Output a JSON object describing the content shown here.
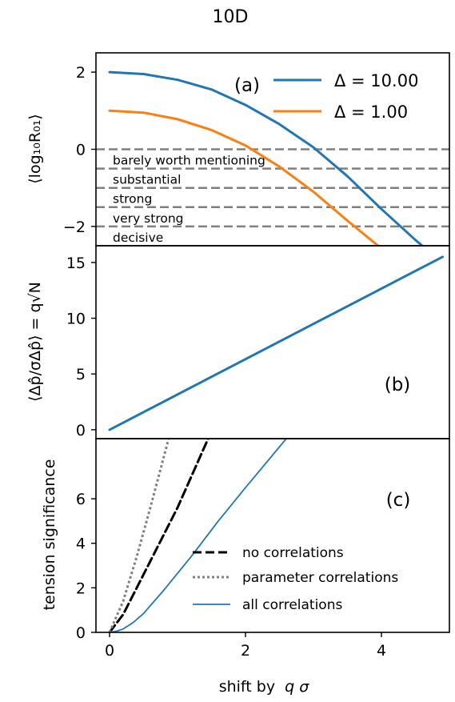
{
  "figure": {
    "title": "10D",
    "xlabel_prefix": "shift by",
    "xlabel_math": "q σ"
  },
  "chart_data": [
    {
      "id": "a",
      "type": "line",
      "panel_label": "(a)",
      "ylabel": "⟨log₁₀R₀₁⟩",
      "xlim": [
        -0.2,
        5.0
      ],
      "ylim": [
        -2.5,
        2.5
      ],
      "yticks": [
        -2,
        0,
        2
      ],
      "ytick_labels": [
        "−2",
        "0",
        "2"
      ],
      "legend_position": "top-right",
      "series": [
        {
          "name": "Δ = 10.00",
          "color": "#1f77b4",
          "x": [
            0,
            0.5,
            1.0,
            1.5,
            2.0,
            2.5,
            3.0,
            3.5,
            4.0,
            4.5,
            4.6
          ],
          "y": [
            2.0,
            1.95,
            1.8,
            1.55,
            1.15,
            0.65,
            0.05,
            -0.7,
            -1.55,
            -2.35,
            -2.5
          ]
        },
        {
          "name": "Δ = 1.00",
          "color": "#ff7f0e",
          "x": [
            0,
            0.5,
            1.0,
            1.5,
            2.0,
            2.5,
            3.0,
            3.5,
            3.95
          ],
          "y": [
            1.0,
            0.95,
            0.78,
            0.5,
            0.1,
            -0.45,
            -1.1,
            -1.85,
            -2.5
          ]
        }
      ],
      "reference_lines": [
        {
          "y": 0,
          "label": "barely worth mentioning"
        },
        {
          "y": -0.5,
          "label": "substantial"
        },
        {
          "y": -1.0,
          "label": "strong"
        },
        {
          "y": -1.5,
          "label": "very strong"
        },
        {
          "y": -2.0,
          "label": "decisive"
        }
      ]
    },
    {
      "id": "b",
      "type": "line",
      "panel_label": "(b)",
      "ylabel": "⟨Δp̂/σΔp̂⟩ = q√N",
      "xlim": [
        -0.2,
        5.0
      ],
      "ylim": [
        -0.8,
        16.5
      ],
      "yticks": [
        0,
        5,
        10,
        15
      ],
      "ytick_labels": [
        "0",
        "5",
        "10",
        "15"
      ],
      "series": [
        {
          "name": "",
          "color": "#1f77b4",
          "x": [
            0,
            4.9
          ],
          "y": [
            0,
            15.5
          ]
        }
      ]
    },
    {
      "id": "c",
      "type": "line",
      "panel_label": "(c)",
      "ylabel": "tension significance",
      "xlim": [
        -0.2,
        5.0
      ],
      "ylim": [
        0,
        8.7
      ],
      "yticks": [
        0,
        2,
        4,
        6
      ],
      "ytick_labels": [
        "0",
        "2",
        "4",
        "6"
      ],
      "xticks": [
        0,
        2,
        4
      ],
      "xtick_labels": [
        "0",
        "2",
        "4"
      ],
      "legend_position": "lower-right",
      "series": [
        {
          "name": "no correlations",
          "color": "#000000",
          "style": "dashed",
          "x": [
            0,
            0.2,
            0.5,
            1.0,
            1.45
          ],
          "y": [
            0,
            0.8,
            2.6,
            5.6,
            8.7
          ]
        },
        {
          "name": "parameter correlations",
          "color": "#7f7f7f",
          "style": "dotted",
          "x": [
            0,
            0.2,
            0.4,
            0.6,
            0.87
          ],
          "y": [
            0,
            1.4,
            3.4,
            5.6,
            8.7
          ]
        },
        {
          "name": "all correlations",
          "color": "#1f77b4",
          "style": "solid",
          "x": [
            0,
            0.1,
            0.2,
            0.35,
            0.5,
            0.8,
            1.2,
            1.6,
            2.0,
            2.6
          ],
          "y": [
            0,
            0.05,
            0.15,
            0.45,
            0.85,
            1.9,
            3.4,
            5.0,
            6.5,
            8.7
          ]
        }
      ]
    }
  ]
}
